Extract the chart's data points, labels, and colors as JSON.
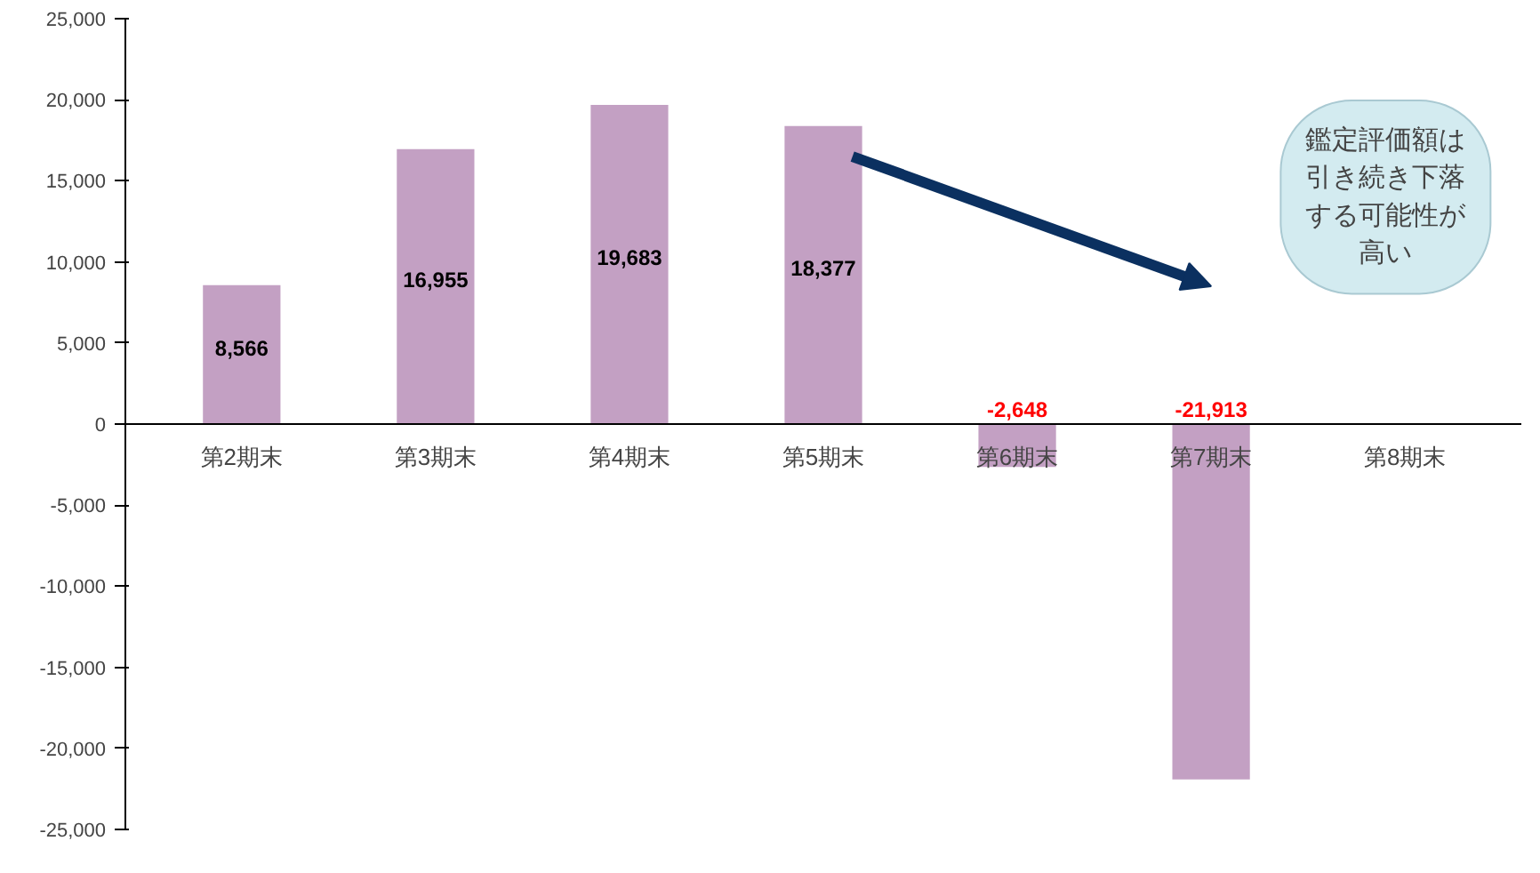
{
  "chart_data": {
    "type": "bar",
    "categories": [
      "第2期末",
      "第3期末",
      "第4期末",
      "第5期末",
      "第6期末",
      "第7期末",
      "第8期末"
    ],
    "values": [
      8566,
      16955,
      19683,
      18377,
      -2648,
      -21913,
      null
    ],
    "color": "#c3a0c3",
    "ylim": [
      -25000,
      25000
    ],
    "yticks": [
      {
        "value": -25000,
        "label": "-25,000"
      },
      {
        "value": -20000,
        "label": "-20,000"
      },
      {
        "value": -15000,
        "label": "-15,000"
      },
      {
        "value": -10000,
        "label": "-10,000"
      },
      {
        "value": -5000,
        "label": "-5,000"
      },
      {
        "value": 0,
        "label": "0"
      },
      {
        "value": 5000,
        "label": "5,000"
      },
      {
        "value": 10000,
        "label": "10,000"
      },
      {
        "value": 15000,
        "label": "15,000"
      },
      {
        "value": 20000,
        "label": "20,000"
      },
      {
        "value": 25000,
        "label": "25,000"
      }
    ],
    "value_labels": [
      "8,566",
      "16,955",
      "19,683",
      "18,377",
      "-2,648",
      "-21,913",
      null
    ],
    "grid": false,
    "annotations": [
      "鑑定評価額は引き続き下落する可能性が高い"
    ]
  }
}
